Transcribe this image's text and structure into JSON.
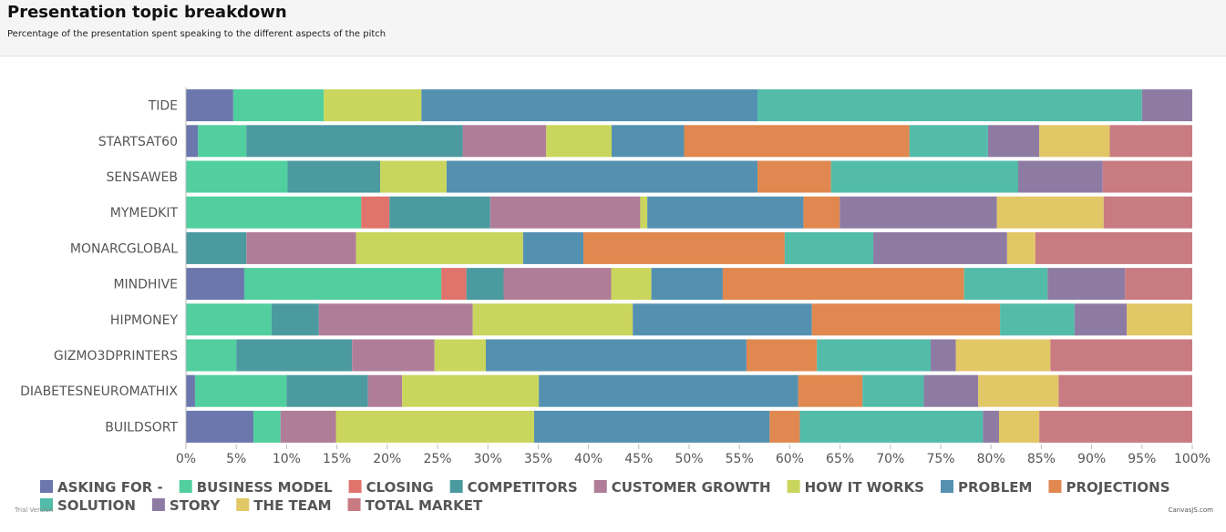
{
  "header": {
    "title": "Presentation topic breakdown",
    "subtitle": "Percentage of the presentation spent speaking to the different aspects of the pitch"
  },
  "footer": {
    "trial_text": "Trial Version",
    "credit_text": "CanvasJS.com"
  },
  "chart_data": {
    "type": "bar",
    "stacking": "100%",
    "orientation": "horizontal",
    "categories": [
      "TIDE",
      "STARTSAT60",
      "SENSAWEB",
      "MYMEDKIT",
      "MONARCGLOBAL",
      "MINDHIVE",
      "HIPMONEY",
      "GIZMO3DPRINTERS",
      "DIABETESNEUROMATHIX",
      "BUILDSORT"
    ],
    "x_ticks": [
      "0%",
      "5%",
      "10%",
      "15%",
      "20%",
      "25%",
      "30%",
      "35%",
      "40%",
      "45%",
      "50%",
      "55%",
      "60%",
      "65%",
      "70%",
      "75%",
      "80%",
      "85%",
      "90%",
      "95%",
      "100%"
    ],
    "xlim": [
      0,
      100
    ],
    "legend_position": "bottom",
    "series": [
      {
        "name": "ASKING FOR -",
        "color": "#6b77ad",
        "values": [
          4.7,
          1.2,
          0,
          0,
          0,
          5.8,
          0,
          0,
          0.9,
          6.7
        ]
      },
      {
        "name": "BUSINESS MODEL",
        "color": "#51cf9e",
        "values": [
          9.0,
          4.8,
          10.1,
          17.4,
          0,
          19.6,
          8.5,
          5.0,
          9.1,
          2.7
        ]
      },
      {
        "name": "CLOSING",
        "color": "#e0736b",
        "values": [
          0,
          0,
          0,
          2.8,
          0,
          2.5,
          0,
          0,
          0,
          0
        ]
      },
      {
        "name": "COMPETITORS",
        "color": "#4b9a9f",
        "values": [
          0,
          21.5,
          9.2,
          10.0,
          6.0,
          3.7,
          4.7,
          11.5,
          8.1,
          0
        ]
      },
      {
        "name": "CUSTOMER GROWTH",
        "color": "#b07d99",
        "values": [
          0,
          8.3,
          0,
          14.9,
          10.9,
          10.7,
          15.3,
          8.2,
          3.4,
          5.5
        ]
      },
      {
        "name": "HOW IT WORKS",
        "color": "#c9d55c",
        "values": [
          9.7,
          6.5,
          6.6,
          0.7,
          16.6,
          4.0,
          15.9,
          5.1,
          13.6,
          19.7
        ]
      },
      {
        "name": "PROBLEM",
        "color": "#5491b1",
        "values": [
          33.4,
          7.2,
          30.9,
          15.5,
          6.0,
          7.1,
          17.8,
          25.9,
          25.8,
          23.4
        ]
      },
      {
        "name": "PROJECTIONS",
        "color": "#e0884f",
        "values": [
          0,
          22.4,
          7.3,
          3.6,
          20.0,
          24.0,
          18.7,
          7.0,
          6.4,
          3.0
        ]
      },
      {
        "name": "SOLUTION",
        "color": "#52bca9",
        "values": [
          38.2,
          7.8,
          18.6,
          0,
          8.8,
          8.3,
          7.4,
          11.3,
          6.1,
          18.2
        ]
      },
      {
        "name": "STORY",
        "color": "#8e7ba3",
        "values": [
          5.0,
          5.1,
          8.4,
          15.6,
          13.3,
          7.7,
          5.2,
          2.5,
          5.4,
          1.6
        ]
      },
      {
        "name": "THE TEAM",
        "color": "#e2c766",
        "values": [
          0,
          7.0,
          0,
          10.6,
          2.8,
          0,
          6.5,
          9.4,
          8.0,
          4.0
        ]
      },
      {
        "name": "TOTAL MARKET",
        "color": "#c97b82",
        "values": [
          0,
          8.2,
          8.9,
          8.8,
          15.6,
          6.7,
          0,
          14.1,
          13.3,
          15.2
        ]
      }
    ]
  }
}
